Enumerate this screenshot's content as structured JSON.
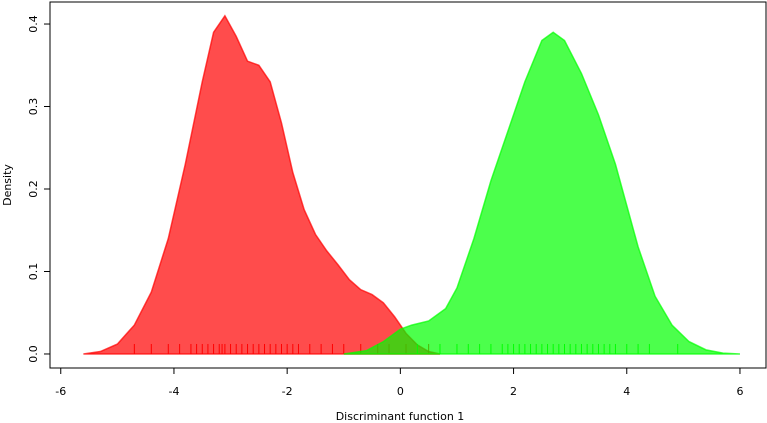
{
  "chart_data": {
    "type": "density",
    "xlabel": "Discriminant function 1",
    "ylabel": "Density",
    "xlim": [
      -6.19,
      6.46
    ],
    "ylim": [
      -0.017,
      0.4267
    ],
    "xticks": [
      -6,
      -4,
      -2,
      0,
      2,
      4,
      6
    ],
    "yticks": [
      {
        "value": 0,
        "label": "0.0"
      },
      0.1,
      0.2,
      0.3,
      0.4
    ],
    "series": [
      {
        "color": "#FF0000B3",
        "x": [
          -5.6,
          -5.3,
          -5.0,
          -4.7,
          -4.4,
          -4.1,
          -3.8,
          -3.5,
          -3.3,
          -3.1,
          -2.9,
          -2.7,
          -2.5,
          -2.3,
          -2.1,
          -1.9,
          -1.7,
          -1.5,
          -1.3,
          -1.1,
          -0.9,
          -0.7,
          -0.5,
          -0.3,
          -0.1,
          0.1,
          0.3,
          0.5,
          0.7
        ],
        "values": [
          0,
          0.003,
          0.012,
          0.035,
          0.075,
          0.14,
          0.23,
          0.33,
          0.39,
          0.41,
          0.385,
          0.355,
          0.35,
          0.33,
          0.28,
          0.22,
          0.175,
          0.145,
          0.125,
          0.108,
          0.09,
          0.078,
          0.072,
          0.062,
          0.045,
          0.025,
          0.011,
          0.003,
          0
        ],
        "rug": [
          -4.7,
          -4.4,
          -4.1,
          -3.9,
          -3.7,
          -3.6,
          -3.5,
          -3.4,
          -3.3,
          -3.2,
          -3.15,
          -3.1,
          -3.0,
          -2.9,
          -2.8,
          -2.7,
          -2.6,
          -2.5,
          -2.4,
          -2.3,
          -2.2,
          -2.1,
          -2.0,
          -1.9,
          -1.8,
          -1.6,
          -1.4,
          -1.2,
          -1.0,
          -0.7,
          -0.4,
          -0.2,
          0.1,
          0.5
        ]
      },
      {
        "color": "#00FF00B3",
        "x": [
          -1.0,
          -0.6,
          -0.3,
          0,
          0.2,
          0.5,
          0.8,
          1.0,
          1.3,
          1.6,
          1.9,
          2.2,
          2.5,
          2.7,
          2.9,
          3.2,
          3.5,
          3.8,
          4.0,
          4.2,
          4.5,
          4.8,
          5.1,
          5.4,
          5.7,
          6.0
        ],
        "values": [
          0,
          0.004,
          0.015,
          0.03,
          0.035,
          0.04,
          0.055,
          0.08,
          0.14,
          0.21,
          0.27,
          0.33,
          0.38,
          0.39,
          0.38,
          0.34,
          0.29,
          0.23,
          0.18,
          0.13,
          0.07,
          0.035,
          0.015,
          0.005,
          0.001,
          0
        ],
        "rug": [
          0.3,
          0.7,
          1.0,
          1.2,
          1.4,
          1.6,
          1.8,
          1.9,
          2.0,
          2.1,
          2.2,
          2.3,
          2.4,
          2.5,
          2.6,
          2.7,
          2.8,
          2.9,
          3.0,
          3.1,
          3.2,
          3.3,
          3.4,
          3.5,
          3.6,
          3.7,
          3.8,
          4.0,
          4.2,
          4.4,
          4.9
        ]
      }
    ]
  }
}
